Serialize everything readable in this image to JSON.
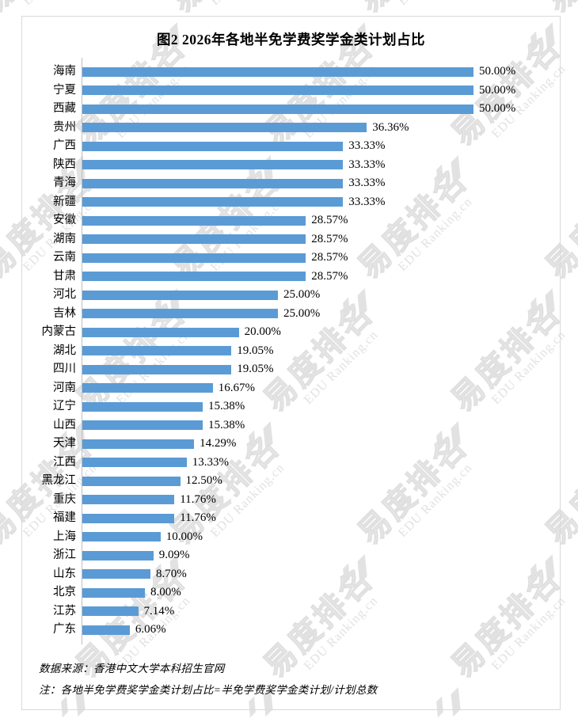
{
  "chart_data": {
    "type": "bar",
    "orientation": "horizontal",
    "title": "图2 2026年各地半免学费奖学金类计划占比",
    "categories": [
      "海南",
      "宁夏",
      "西藏",
      "贵州",
      "广西",
      "陕西",
      "青海",
      "新疆",
      "安徽",
      "湖南",
      "云南",
      "甘肃",
      "河北",
      "吉林",
      "内蒙古",
      "湖北",
      "四川",
      "河南",
      "辽宁",
      "山西",
      "天津",
      "江西",
      "黑龙江",
      "重庆",
      "福建",
      "上海",
      "浙江",
      "山东",
      "北京",
      "江苏",
      "广东"
    ],
    "values": [
      50.0,
      50.0,
      50.0,
      36.36,
      33.33,
      33.33,
      33.33,
      33.33,
      28.57,
      28.57,
      28.57,
      28.57,
      25.0,
      25.0,
      20.0,
      19.05,
      19.05,
      16.67,
      15.38,
      15.38,
      14.29,
      13.33,
      12.5,
      11.76,
      11.76,
      10.0,
      9.09,
      8.7,
      8.0,
      7.14,
      6.06
    ],
    "value_labels": [
      "50.00%",
      "50.00%",
      "50.00%",
      "36.36%",
      "33.33%",
      "33.33%",
      "33.33%",
      "33.33%",
      "28.57%",
      "28.57%",
      "28.57%",
      "28.57%",
      "25.00%",
      "25.00%",
      "20.00%",
      "19.05%",
      "19.05%",
      "16.67%",
      "15.38%",
      "15.38%",
      "14.29%",
      "13.33%",
      "12.50%",
      "11.76%",
      "11.76%",
      "10.00%",
      "9.09%",
      "8.70%",
      "8.00%",
      "7.14%",
      "6.06%"
    ],
    "xlabel": "",
    "ylabel": "",
    "xlim": [
      0,
      50
    ],
    "grid": false,
    "legend": null,
    "value_label_position": "outside-end",
    "bar_color": "#5b9bd5",
    "axis_line_color": "#bfbfbf"
  },
  "footer": {
    "source": "数据来源：香港中文大学本科招生官网",
    "note": "注：各地半免学费奖学金类计划占比=半免学费奖学金类计划/计划总数"
  },
  "watermark": {
    "brand_cn": "易度排名",
    "brand_en": "EDU Ranking.cn",
    "logo_icon": "edu-ranking-logo"
  },
  "colors": {
    "bar": "#5b9bd5",
    "frame_border": "#d9d9d9",
    "axis_line": "#bfbfbf",
    "watermark": "#e2e2e2",
    "text": "#000000"
  }
}
